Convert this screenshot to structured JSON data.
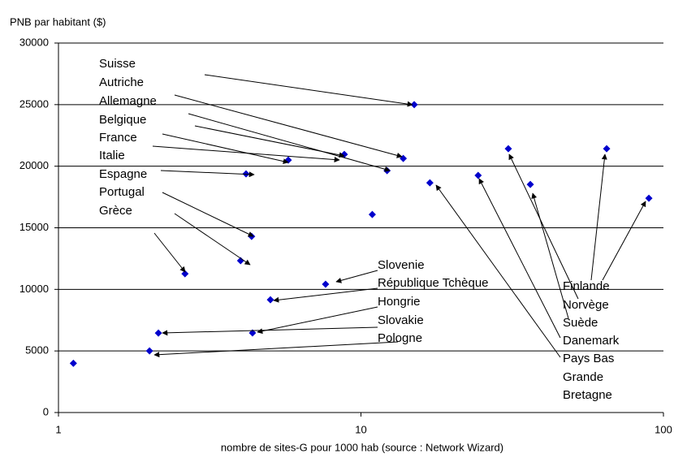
{
  "chart_data": {
    "type": "scatter",
    "title": "PNB par habitant ($)",
    "x_label": "nombre de sites-G pour 1000 hab (source : Network Wizard)",
    "x": [
      1.12,
      2.0,
      2.14,
      2.62,
      4.0,
      4.35,
      4.17,
      4.38,
      5.02,
      5.75,
      7.64,
      8.81,
      10.9,
      12.2,
      13.8,
      15.0,
      16.9,
      24.4,
      30.7,
      36.3,
      64.9,
      89.5
    ],
    "values": [
      4000,
      5000,
      6450,
      11270,
      12330,
      14300,
      19380,
      6460,
      9160,
      20500,
      10420,
      20960,
      16080,
      19640,
      20630,
      25000,
      18650,
      19250,
      21420,
      18520,
      21420,
      17400
    ],
    "color": "#0000cc",
    "x_log": true,
    "xlim": [
      1,
      100
    ],
    "xticks": [
      1,
      10,
      100
    ],
    "ylim": [
      0,
      30000
    ],
    "yticks": [
      0,
      5000,
      10000,
      15000,
      20000,
      25000,
      30000
    ],
    "grid": true,
    "annotations": [
      "Suisse",
      "Autriche",
      "Allemagne",
      "Belgique",
      "France",
      "Italie",
      "Espagne",
      "Portugal",
      "Grèce",
      "Slovenie",
      "République Tchèque",
      "Hongrie",
      "Slovakie",
      "Pologne",
      "Finlande",
      "Norvège",
      "Suède",
      "Danemark",
      "Pays Bas",
      "Grande",
      "Bretagne"
    ]
  }
}
